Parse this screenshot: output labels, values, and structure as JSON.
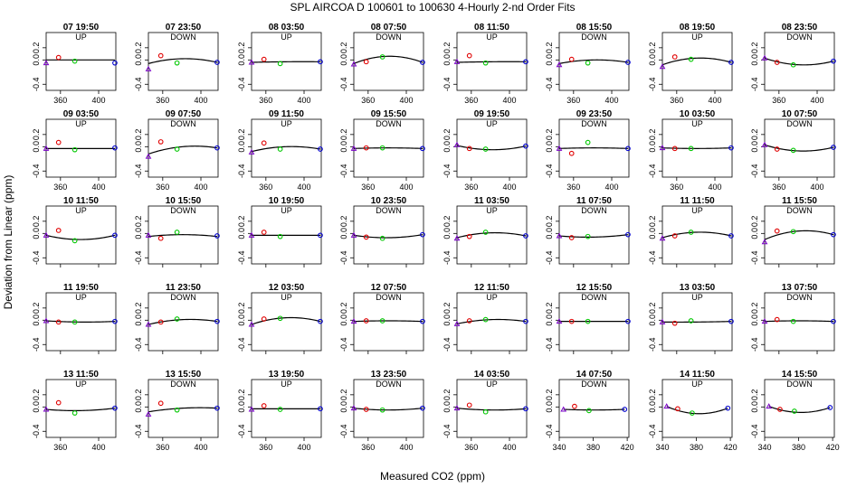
{
  "chart_data": {
    "type": "scatter",
    "title": "SPL   AIRCOA D   100601 to 100630   4-Hourly 2-nd Order Fits",
    "xlabel": "Measured CO2 (ppm)",
    "ylabel": "Deviation from Linear (ppm)",
    "ylim": [
      -0.5,
      0.45
    ],
    "yticks": [
      -0.4,
      0.0,
      0.2
    ],
    "ytick_labels": [
      "-0.4",
      "0.0",
      "0.2"
    ],
    "xticks_a": [
      360,
      400
    ],
    "xticks_b": [
      340,
      380,
      420
    ],
    "grid": false,
    "panels": [
      {
        "time": "07 19:50",
        "mode": "UP",
        "xr": [
          345,
          418
        ],
        "pts": [
          [
            345,
            -0.05
          ],
          [
            358,
            0.04
          ],
          [
            375,
            -0.02
          ],
          [
            417,
            -0.05
          ]
        ],
        "curve": [
          0,
          0,
          0
        ]
      },
      {
        "time": "07 23:50",
        "mode": "DOWN",
        "xr": [
          345,
          418
        ],
        "pts": [
          [
            345,
            -0.15
          ],
          [
            358,
            0.07
          ],
          [
            375,
            -0.05
          ],
          [
            417,
            -0.04
          ]
        ],
        "curve": [
          -0.06,
          0.02,
          -0.04
        ]
      },
      {
        "time": "08 03:50",
        "mode": "UP",
        "xr": [
          345,
          418
        ],
        "pts": [
          [
            345,
            -0.04
          ],
          [
            358,
            0.01
          ],
          [
            375,
            -0.06
          ],
          [
            417,
            -0.03
          ]
        ],
        "curve": [
          -0.04,
          -0.03,
          -0.03
        ]
      },
      {
        "time": "08 07:50",
        "mode": "DOWN",
        "xr": [
          345,
          418
        ],
        "pts": [
          [
            345,
            -0.07
          ],
          [
            358,
            -0.03
          ],
          [
            375,
            0.05
          ],
          [
            417,
            -0.04
          ]
        ],
        "curve": [
          -0.06,
          0.06,
          -0.04
        ]
      },
      {
        "time": "08 11:50",
        "mode": "UP",
        "xr": [
          345,
          418
        ],
        "pts": [
          [
            345,
            -0.03
          ],
          [
            358,
            0.07
          ],
          [
            375,
            -0.05
          ],
          [
            417,
            -0.03
          ]
        ],
        "curve": [
          -0.04,
          -0.03,
          -0.03
        ]
      },
      {
        "time": "08 15:50",
        "mode": "DOWN",
        "xr": [
          345,
          418
        ],
        "pts": [
          [
            345,
            -0.08
          ],
          [
            358,
            0.01
          ],
          [
            375,
            -0.05
          ],
          [
            417,
            -0.04
          ]
        ],
        "curve": [
          -0.06,
          0,
          -0.04
        ]
      },
      {
        "time": "08 19:50",
        "mode": "UP",
        "xr": [
          345,
          418
        ],
        "pts": [
          [
            345,
            -0.11
          ],
          [
            358,
            0.05
          ],
          [
            375,
            0.01
          ],
          [
            417,
            -0.04
          ]
        ],
        "curve": [
          -0.08,
          0.03,
          -0.04
        ]
      },
      {
        "time": "08 23:50",
        "mode": "DOWN",
        "xr": [
          345,
          418
        ],
        "pts": [
          [
            345,
            0.03
          ],
          [
            358,
            -0.04
          ],
          [
            375,
            -0.08
          ],
          [
            417,
            -0.02
          ]
        ],
        "curve": [
          0.03,
          -0.08,
          -0.02
        ]
      },
      {
        "time": "09 03:50",
        "mode": "UP",
        "xr": [
          345,
          418
        ],
        "pts": [
          [
            345,
            -0.03
          ],
          [
            358,
            0.07
          ],
          [
            375,
            -0.05
          ],
          [
            417,
            -0.02
          ]
        ],
        "curve": [
          -0.03,
          -0.03,
          -0.03
        ]
      },
      {
        "time": "09 07:50",
        "mode": "DOWN",
        "xr": [
          345,
          418
        ],
        "pts": [
          [
            345,
            -0.16
          ],
          [
            358,
            0.08
          ],
          [
            375,
            -0.04
          ],
          [
            417,
            -0.02
          ]
        ],
        "curve": [
          -0.12,
          0,
          -0.02
        ]
      },
      {
        "time": "09 11:50",
        "mode": "UP",
        "xr": [
          345,
          418
        ],
        "pts": [
          [
            345,
            -0.09
          ],
          [
            358,
            0.06
          ],
          [
            375,
            -0.04
          ],
          [
            417,
            -0.04
          ]
        ],
        "curve": [
          -0.08,
          0,
          -0.04
        ]
      },
      {
        "time": "09 15:50",
        "mode": "DOWN",
        "xr": [
          345,
          418
        ],
        "pts": [
          [
            345,
            -0.03
          ],
          [
            358,
            -0.02
          ],
          [
            375,
            -0.02
          ],
          [
            417,
            -0.03
          ]
        ],
        "curve": [
          -0.03,
          -0.02,
          -0.03
        ]
      },
      {
        "time": "09 19:50",
        "mode": "UP",
        "xr": [
          345,
          418
        ],
        "pts": [
          [
            345,
            0.03
          ],
          [
            358,
            -0.03
          ],
          [
            375,
            -0.04
          ],
          [
            417,
            0.01
          ]
        ],
        "curve": [
          0.02,
          -0.05,
          0.01
        ]
      },
      {
        "time": "09 23:50",
        "mode": "DOWN",
        "xr": [
          345,
          418
        ],
        "pts": [
          [
            345,
            -0.03
          ],
          [
            358,
            -0.11
          ],
          [
            375,
            0.07
          ],
          [
            417,
            -0.03
          ]
        ],
        "curve": [
          -0.03,
          -0.02,
          -0.03
        ]
      },
      {
        "time": "10 03:50",
        "mode": "UP",
        "xr": [
          345,
          418
        ],
        "pts": [
          [
            345,
            -0.02
          ],
          [
            358,
            -0.03
          ],
          [
            375,
            -0.03
          ],
          [
            417,
            -0.02
          ]
        ],
        "curve": [
          -0.02,
          -0.03,
          -0.02
        ]
      },
      {
        "time": "10 07:50",
        "mode": "DOWN",
        "xr": [
          345,
          418
        ],
        "pts": [
          [
            345,
            0.03
          ],
          [
            358,
            -0.04
          ],
          [
            375,
            -0.06
          ],
          [
            417,
            -0.01
          ]
        ],
        "curve": [
          0.03,
          -0.07,
          -0.01
        ]
      },
      {
        "time": "10 11:50",
        "mode": "UP",
        "xr": [
          345,
          418
        ],
        "pts": [
          [
            345,
            -0.03
          ],
          [
            358,
            0.05
          ],
          [
            375,
            -0.12
          ],
          [
            417,
            -0.03
          ]
        ],
        "curve": [
          -0.03,
          -0.1,
          -0.03
        ]
      },
      {
        "time": "10 15:50",
        "mode": "DOWN",
        "xr": [
          345,
          418
        ],
        "pts": [
          [
            345,
            -0.03
          ],
          [
            358,
            -0.08
          ],
          [
            375,
            0.02
          ],
          [
            417,
            -0.04
          ]
        ],
        "curve": [
          -0.05,
          -0.02,
          -0.05
        ]
      },
      {
        "time": "10 19:50",
        "mode": "UP",
        "xr": [
          345,
          418
        ],
        "pts": [
          [
            345,
            -0.03
          ],
          [
            358,
            0.02
          ],
          [
            375,
            -0.05
          ],
          [
            417,
            -0.03
          ]
        ],
        "curve": [
          -0.03,
          -0.03,
          -0.03
        ]
      },
      {
        "time": "10 23:50",
        "mode": "DOWN",
        "xr": [
          345,
          418
        ],
        "pts": [
          [
            345,
            -0.03
          ],
          [
            358,
            -0.06
          ],
          [
            375,
            -0.08
          ],
          [
            417,
            -0.02
          ]
        ],
        "curve": [
          -0.03,
          -0.07,
          -0.02
        ]
      },
      {
        "time": "11 03:50",
        "mode": "UP",
        "xr": [
          345,
          418
        ],
        "pts": [
          [
            345,
            -0.08
          ],
          [
            358,
            -0.05
          ],
          [
            375,
            0.02
          ],
          [
            417,
            -0.04
          ]
        ],
        "curve": [
          -0.07,
          0.01,
          -0.04
        ]
      },
      {
        "time": "11 07:50",
        "mode": "DOWN",
        "xr": [
          345,
          418
        ],
        "pts": [
          [
            345,
            -0.04
          ],
          [
            358,
            -0.07
          ],
          [
            375,
            -0.05
          ],
          [
            417,
            -0.02
          ]
        ],
        "curve": [
          -0.04,
          -0.06,
          -0.02
        ]
      },
      {
        "time": "11 11:50",
        "mode": "UP",
        "xr": [
          345,
          418
        ],
        "pts": [
          [
            345,
            -0.08
          ],
          [
            358,
            -0.04
          ],
          [
            375,
            0.02
          ],
          [
            417,
            -0.04
          ]
        ],
        "curve": [
          -0.07,
          0.02,
          -0.04
        ]
      },
      {
        "time": "11 15:50",
        "mode": "DOWN",
        "xr": [
          345,
          418
        ],
        "pts": [
          [
            345,
            -0.14
          ],
          [
            358,
            0.04
          ],
          [
            375,
            0.03
          ],
          [
            417,
            -0.02
          ]
        ],
        "curve": [
          -0.1,
          0.04,
          -0.02
        ]
      },
      {
        "time": "11 19:50",
        "mode": "UP",
        "xr": [
          345,
          418
        ],
        "pts": [
          [
            345,
            -0.01
          ],
          [
            358,
            -0.03
          ],
          [
            375,
            -0.03
          ],
          [
            417,
            -0.02
          ]
        ],
        "curve": [
          -0.01,
          -0.03,
          -0.02
        ]
      },
      {
        "time": "11 23:50",
        "mode": "DOWN",
        "xr": [
          345,
          418
        ],
        "pts": [
          [
            345,
            -0.07
          ],
          [
            358,
            -0.03
          ],
          [
            375,
            0.02
          ],
          [
            417,
            -0.02
          ]
        ],
        "curve": [
          -0.07,
          0.01,
          -0.02
        ]
      },
      {
        "time": "12 03:50",
        "mode": "UP",
        "xr": [
          345,
          418
        ],
        "pts": [
          [
            345,
            -0.07
          ],
          [
            358,
            0.02
          ],
          [
            375,
            0.03
          ],
          [
            417,
            -0.02
          ]
        ],
        "curve": [
          -0.07,
          0.04,
          -0.02
        ]
      },
      {
        "time": "12 07:50",
        "mode": "DOWN",
        "xr": [
          345,
          418
        ],
        "pts": [
          [
            345,
            -0.02
          ],
          [
            358,
            -0.01
          ],
          [
            375,
            -0.01
          ],
          [
            417,
            -0.02
          ]
        ],
        "curve": [
          -0.02,
          -0.01,
          -0.02
        ]
      },
      {
        "time": "12 11:50",
        "mode": "UP",
        "xr": [
          345,
          418
        ],
        "pts": [
          [
            345,
            -0.06
          ],
          [
            358,
            -0.01
          ],
          [
            375,
            0.01
          ],
          [
            417,
            -0.02
          ]
        ],
        "curve": [
          -0.06,
          0.01,
          -0.02
        ]
      },
      {
        "time": "12 15:50",
        "mode": "DOWN",
        "xr": [
          345,
          418
        ],
        "pts": [
          [
            345,
            -0.02
          ],
          [
            358,
            -0.02
          ],
          [
            375,
            -0.02
          ],
          [
            417,
            -0.02
          ]
        ],
        "curve": [
          -0.02,
          -0.02,
          -0.02
        ]
      },
      {
        "time": "13 03:50",
        "mode": "UP",
        "xr": [
          345,
          418
        ],
        "pts": [
          [
            345,
            -0.03
          ],
          [
            358,
            -0.05
          ],
          [
            375,
            -0.01
          ],
          [
            417,
            -0.02
          ]
        ],
        "curve": [
          -0.03,
          -0.03,
          -0.02
        ]
      },
      {
        "time": "13 07:50",
        "mode": "DOWN",
        "xr": [
          345,
          418
        ],
        "pts": [
          [
            345,
            -0.02
          ],
          [
            358,
            0.01
          ],
          [
            375,
            -0.02
          ],
          [
            417,
            -0.02
          ]
        ],
        "curve": [
          -0.02,
          -0.01,
          -0.02
        ]
      },
      {
        "time": "13 11:50",
        "mode": "UP",
        "xr": [
          345,
          418
        ],
        "pts": [
          [
            345,
            -0.04
          ],
          [
            358,
            0.07
          ],
          [
            375,
            -0.1
          ],
          [
            417,
            -0.02
          ]
        ],
        "curve": [
          -0.04,
          -0.06,
          -0.02
        ]
      },
      {
        "time": "13 15:50",
        "mode": "DOWN",
        "xr": [
          345,
          418
        ],
        "pts": [
          [
            345,
            -0.12
          ],
          [
            358,
            0.06
          ],
          [
            375,
            -0.05
          ],
          [
            417,
            -0.02
          ]
        ],
        "curve": [
          -0.08,
          -0.02,
          -0.02
        ]
      },
      {
        "time": "13 19:50",
        "mode": "UP",
        "xr": [
          345,
          418
        ],
        "pts": [
          [
            345,
            -0.04
          ],
          [
            358,
            0.02
          ],
          [
            375,
            -0.04
          ],
          [
            417,
            -0.03
          ]
        ],
        "curve": [
          -0.03,
          -0.03,
          -0.03
        ]
      },
      {
        "time": "13 23:50",
        "mode": "DOWN",
        "xr": [
          345,
          418
        ],
        "pts": [
          [
            345,
            -0.02
          ],
          [
            358,
            -0.04
          ],
          [
            375,
            -0.05
          ],
          [
            417,
            -0.02
          ]
        ],
        "curve": [
          -0.02,
          -0.05,
          -0.02
        ]
      },
      {
        "time": "14 03:50",
        "mode": "UP",
        "xr": [
          345,
          418
        ],
        "pts": [
          [
            345,
            -0.02
          ],
          [
            358,
            0.03
          ],
          [
            375,
            -0.08
          ],
          [
            417,
            -0.03
          ]
        ],
        "curve": [
          -0.02,
          -0.05,
          -0.03
        ]
      },
      {
        "time": "14 07:50",
        "mode": "DOWN",
        "xr": [
          340,
          422
        ],
        "pts": [
          [
            345,
            -0.04
          ],
          [
            358,
            0.01
          ],
          [
            375,
            -0.06
          ],
          [
            417,
            -0.04
          ]
        ],
        "curve": [
          -0.04,
          -0.05,
          -0.04
        ]
      },
      {
        "time": "14 11:50",
        "mode": "UP",
        "xr": [
          340,
          422
        ],
        "pts": [
          [
            345,
            0.01
          ],
          [
            358,
            -0.03
          ],
          [
            375,
            -0.1
          ],
          [
            417,
            -0.02
          ]
        ],
        "curve": [
          0.01,
          -0.11,
          -0.02
        ]
      },
      {
        "time": "14 15:50",
        "mode": "DOWN",
        "xr": [
          340,
          422
        ],
        "pts": [
          [
            345,
            0.01
          ],
          [
            358,
            -0.04
          ],
          [
            375,
            -0.07
          ],
          [
            417,
            -0.01
          ]
        ],
        "curve": [
          0.01,
          -0.09,
          -0.01
        ]
      }
    ]
  }
}
